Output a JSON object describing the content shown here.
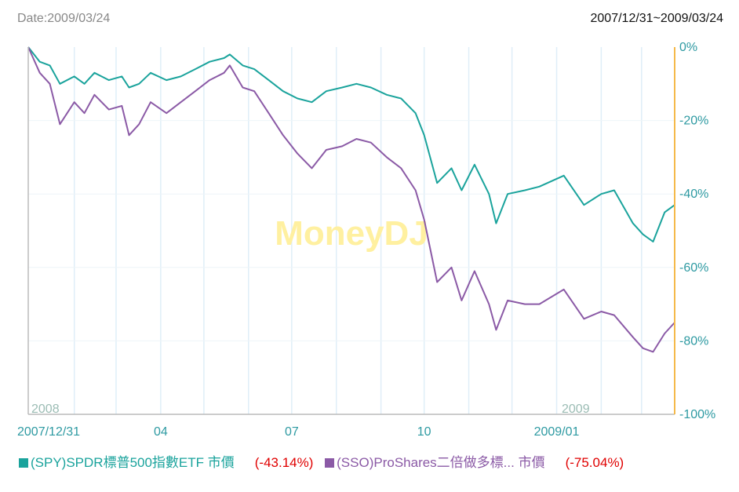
{
  "header": {
    "date_label": "Date:2009/03/24",
    "range_label": "2007/12/31~2009/03/24"
  },
  "watermark": "MoneyDJ",
  "colors": {
    "spy": "#1aa39c",
    "sso": "#8b5aa6",
    "right_axis": "#f5b94a",
    "grid": "#dfeef8",
    "axis_text": "#2e9aa2",
    "year_text": "#9bbcb4",
    "watermark": "#fff0a0",
    "negative": "#e00000"
  },
  "legend": [
    {
      "label": "(SPY)SPDR標普500指數ETF 市價",
      "change": "(-43.14%)",
      "color": "#1aa39c"
    },
    {
      "label": "(SSO)ProShares二倍做多標... 市價",
      "change": "(-75.04%)",
      "color": "#8b5aa6"
    }
  ],
  "chart_data": {
    "type": "line",
    "x_tick_labels": [
      "2007/12/31",
      "04",
      "07",
      "10",
      "2009/01"
    ],
    "year_labels": [
      "2008",
      "2009"
    ],
    "y_tick_labels": [
      "0%",
      "-20%",
      "-40%",
      "-60%",
      "-80%",
      "-100%"
    ],
    "ylim": [
      -100,
      0
    ],
    "grid": true,
    "series": [
      {
        "name": "(SPY)SPDR標普500指數ETF 市價",
        "points": [
          [
            "2007-12-31",
            0
          ],
          [
            "2008-01-08",
            -4
          ],
          [
            "2008-01-15",
            -5
          ],
          [
            "2008-01-22",
            -10
          ],
          [
            "2008-02-01",
            -8
          ],
          [
            "2008-02-08",
            -10
          ],
          [
            "2008-02-15",
            -7
          ],
          [
            "2008-02-25",
            -9
          ],
          [
            "2008-03-05",
            -8
          ],
          [
            "2008-03-10",
            -11
          ],
          [
            "2008-03-17",
            -10
          ],
          [
            "2008-03-25",
            -7
          ],
          [
            "2008-04-05",
            -9
          ],
          [
            "2008-04-15",
            -8
          ],
          [
            "2008-04-25",
            -6
          ],
          [
            "2008-05-05",
            -4
          ],
          [
            "2008-05-15",
            -3
          ],
          [
            "2008-05-19",
            -2
          ],
          [
            "2008-05-28",
            -5
          ],
          [
            "2008-06-05",
            -6
          ],
          [
            "2008-06-15",
            -9
          ],
          [
            "2008-06-25",
            -12
          ],
          [
            "2008-07-05",
            -14
          ],
          [
            "2008-07-15",
            -15
          ],
          [
            "2008-07-25",
            -12
          ],
          [
            "2008-08-05",
            -11
          ],
          [
            "2008-08-15",
            -10
          ],
          [
            "2008-08-25",
            -11
          ],
          [
            "2008-09-05",
            -13
          ],
          [
            "2008-09-15",
            -14
          ],
          [
            "2008-09-25",
            -18
          ],
          [
            "2008-10-01",
            -24
          ],
          [
            "2008-10-10",
            -37
          ],
          [
            "2008-10-20",
            -33
          ],
          [
            "2008-10-27",
            -39
          ],
          [
            "2008-11-05",
            -32
          ],
          [
            "2008-11-15",
            -40
          ],
          [
            "2008-11-20",
            -48
          ],
          [
            "2008-11-28",
            -40
          ],
          [
            "2008-12-10",
            -39
          ],
          [
            "2008-12-20",
            -38
          ],
          [
            "2009-01-06",
            -35
          ],
          [
            "2009-01-20",
            -43
          ],
          [
            "2009-02-01",
            -40
          ],
          [
            "2009-02-10",
            -39
          ],
          [
            "2009-02-23",
            -48
          ],
          [
            "2009-03-02",
            -51
          ],
          [
            "2009-03-09",
            -53
          ],
          [
            "2009-03-17",
            -45
          ],
          [
            "2009-03-24",
            -43
          ]
        ]
      },
      {
        "name": "(SSO)ProShares二倍做多標... 市價",
        "points": [
          [
            "2007-12-31",
            0
          ],
          [
            "2008-01-08",
            -7
          ],
          [
            "2008-01-15",
            -10
          ],
          [
            "2008-01-22",
            -21
          ],
          [
            "2008-02-01",
            -15
          ],
          [
            "2008-02-08",
            -18
          ],
          [
            "2008-02-15",
            -13
          ],
          [
            "2008-02-25",
            -17
          ],
          [
            "2008-03-05",
            -16
          ],
          [
            "2008-03-10",
            -24
          ],
          [
            "2008-03-17",
            -21
          ],
          [
            "2008-03-25",
            -15
          ],
          [
            "2008-04-05",
            -18
          ],
          [
            "2008-04-15",
            -15
          ],
          [
            "2008-04-25",
            -12
          ],
          [
            "2008-05-05",
            -9
          ],
          [
            "2008-05-15",
            -7
          ],
          [
            "2008-05-19",
            -5
          ],
          [
            "2008-05-28",
            -11
          ],
          [
            "2008-06-05",
            -12
          ],
          [
            "2008-06-15",
            -18
          ],
          [
            "2008-06-25",
            -24
          ],
          [
            "2008-07-05",
            -29
          ],
          [
            "2008-07-15",
            -33
          ],
          [
            "2008-07-25",
            -28
          ],
          [
            "2008-08-05",
            -27
          ],
          [
            "2008-08-15",
            -25
          ],
          [
            "2008-08-25",
            -26
          ],
          [
            "2008-09-05",
            -30
          ],
          [
            "2008-09-15",
            -33
          ],
          [
            "2008-09-25",
            -39
          ],
          [
            "2008-10-01",
            -47
          ],
          [
            "2008-10-10",
            -64
          ],
          [
            "2008-10-20",
            -60
          ],
          [
            "2008-10-27",
            -69
          ],
          [
            "2008-11-05",
            -61
          ],
          [
            "2008-11-15",
            -70
          ],
          [
            "2008-11-20",
            -77
          ],
          [
            "2008-11-28",
            -69
          ],
          [
            "2008-12-10",
            -70
          ],
          [
            "2008-12-20",
            -70
          ],
          [
            "2009-01-06",
            -66
          ],
          [
            "2009-01-20",
            -74
          ],
          [
            "2009-02-01",
            -72
          ],
          [
            "2009-02-10",
            -73
          ],
          [
            "2009-02-23",
            -79
          ],
          [
            "2009-03-02",
            -82
          ],
          [
            "2009-03-09",
            -83
          ],
          [
            "2009-03-17",
            -78
          ],
          [
            "2009-03-24",
            -75
          ]
        ]
      }
    ]
  }
}
